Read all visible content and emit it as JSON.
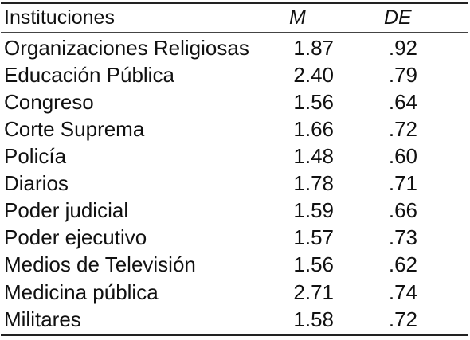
{
  "table": {
    "headers": {
      "institution": "Instituciones",
      "mean": "M",
      "sd": "DE"
    },
    "rows": [
      {
        "institution": "Organizaciones Religiosas",
        "mean": "1.87",
        "sd": ".92"
      },
      {
        "institution": "Educación Pública",
        "mean": "2.40",
        "sd": ".79"
      },
      {
        "institution": "Congreso",
        "mean": "1.56",
        "sd": ".64"
      },
      {
        "institution": "Corte Suprema",
        "mean": "1.66",
        "sd": ".72"
      },
      {
        "institution": "Policía",
        "mean": "1.48",
        "sd": ".60"
      },
      {
        "institution": "Diarios",
        "mean": "1.78",
        "sd": ".71"
      },
      {
        "institution": "Poder judicial",
        "mean": "1.59",
        "sd": ".66"
      },
      {
        "institution": "Poder ejecutivo",
        "mean": "1.57",
        "sd": ".73"
      },
      {
        "institution": "Medios de Televisión",
        "mean": "1.56",
        "sd": ".62"
      },
      {
        "institution": "Medicina pública",
        "mean": "2.71",
        "sd": ".74"
      },
      {
        "institution": "Militares",
        "mean": "1.58",
        "sd": ".72"
      }
    ]
  }
}
